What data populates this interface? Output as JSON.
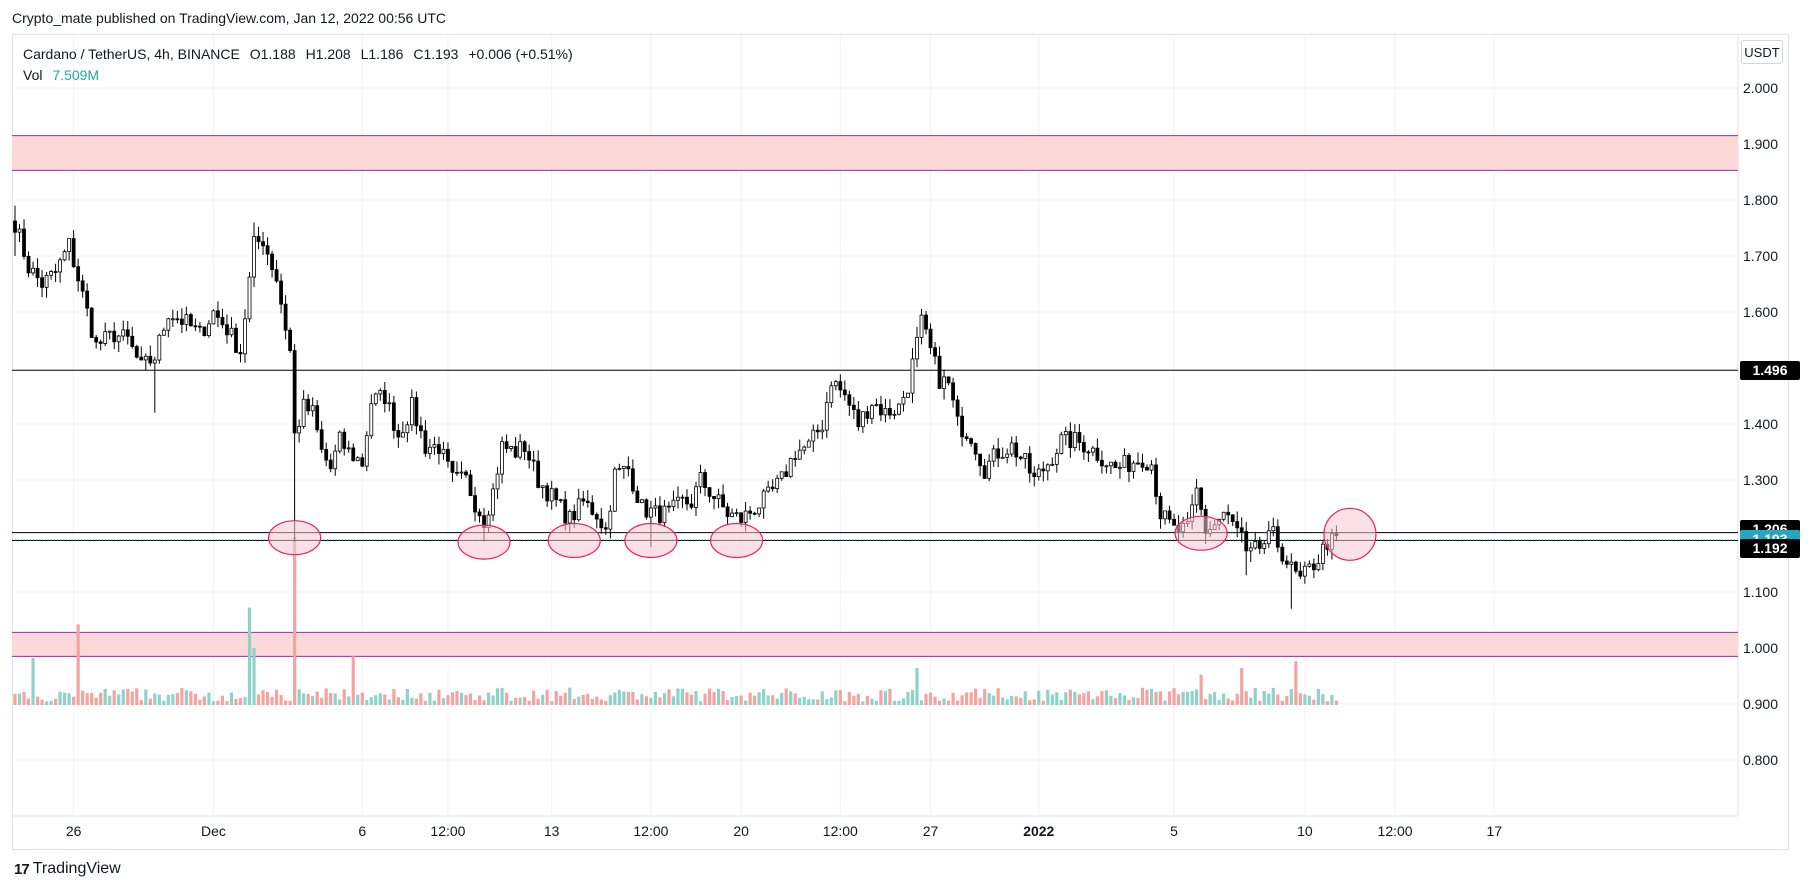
{
  "publisher_line": "Crypto_mate published on TradingView.com, Jan 12, 2022 00:56 UTC",
  "legend": {
    "symbol": "Cardano / TetherUS, 4h, BINANCE",
    "open": "O1.188",
    "high": "H1.208",
    "low": "L1.186",
    "close": "C1.193",
    "change": "+0.006 (+0.51%)",
    "vol_label": "Vol",
    "vol_value": "7.509M"
  },
  "currency_button": "USDT",
  "brand": {
    "logo": "17",
    "name": "TradingView"
  },
  "price_badges": [
    {
      "text": "1.496",
      "value": 1.496,
      "style": "dark"
    },
    {
      "text": "1.206",
      "value": 1.206,
      "style": "dark"
    },
    {
      "text": "1.193",
      "value": 1.193,
      "style": "teal"
    },
    {
      "text": "1.192",
      "value": 1.192,
      "style": "dark"
    }
  ],
  "colors": {
    "up_candle": "#ffffff",
    "down_candle": "#000000",
    "vol_up": "#8fd3c8",
    "vol_down": "#f4a3a0",
    "zone_fill": "#fcd8d8",
    "zone_border": "#9c27b0",
    "circle_fill": "#f8c8d4",
    "circle_stroke": "#e91e63",
    "last_price": "#26a7bf"
  },
  "chart_data": {
    "type": "candlestick",
    "title": "Cardano / TetherUS, 4h, BINANCE",
    "ylim": [
      0.75,
      2.07
    ],
    "y_ticks": [
      "2.000",
      "1.900",
      "1.800",
      "1.700",
      "1.600",
      "1.400",
      "1.300",
      "1.100",
      "1.000",
      "0.900",
      "0.800"
    ],
    "x_ticks": [
      {
        "label": "26",
        "index": 13
      },
      {
        "label": "Dec",
        "index": 44
      },
      {
        "label": "6",
        "index": 77
      },
      {
        "label": "12:00",
        "index": 96
      },
      {
        "label": "13",
        "index": 119
      },
      {
        "label": "12:00",
        "index": 141
      },
      {
        "label": "20",
        "index": 161
      },
      {
        "label": "12:00",
        "index": 183
      },
      {
        "label": "27",
        "index": 203
      },
      {
        "label": "2022",
        "index": 227,
        "bold": true
      },
      {
        "label": "5",
        "index": 257
      },
      {
        "label": "10",
        "index": 286
      },
      {
        "label": "12:00",
        "index": 306
      },
      {
        "label": "17",
        "index": 328
      }
    ],
    "x_count": 330,
    "horizontal_lines": [
      1.496,
      1.206,
      1.192
    ],
    "last_price_line": 1.193,
    "zones": [
      {
        "top": 1.915,
        "bottom": 1.853
      },
      {
        "top": 1.028,
        "bottom": 0.985
      }
    ],
    "circles": [
      {
        "index": 62,
        "price": 1.197
      },
      {
        "index": 104,
        "price": 1.189
      },
      {
        "index": 124,
        "price": 1.192
      },
      {
        "index": 141,
        "price": 1.192
      },
      {
        "index": 160,
        "price": 1.192
      },
      {
        "index": 263,
        "price": 1.205
      },
      {
        "index": 296,
        "price": 1.203,
        "big": true
      }
    ],
    "anchors": [
      [
        0,
        1.76
      ],
      [
        3,
        1.68
      ],
      [
        6,
        1.65
      ],
      [
        9,
        1.67
      ],
      [
        12,
        1.72
      ],
      [
        15,
        1.63
      ],
      [
        18,
        1.54
      ],
      [
        22,
        1.56
      ],
      [
        25,
        1.55
      ],
      [
        28,
        1.5
      ],
      [
        31,
        1.52
      ],
      [
        34,
        1.6
      ],
      [
        38,
        1.58
      ],
      [
        41,
        1.56
      ],
      [
        44,
        1.6
      ],
      [
        47,
        1.57
      ],
      [
        50,
        1.53
      ],
      [
        53,
        1.72
      ],
      [
        55,
        1.73
      ],
      [
        58,
        1.66
      ],
      [
        61,
        1.53
      ],
      [
        62,
        1.38
      ],
      [
        64,
        1.43
      ],
      [
        66,
        1.42
      ],
      [
        68,
        1.35
      ],
      [
        70,
        1.32
      ],
      [
        72,
        1.37
      ],
      [
        74,
        1.35
      ],
      [
        77,
        1.33
      ],
      [
        79,
        1.44
      ],
      [
        82,
        1.45
      ],
      [
        85,
        1.38
      ],
      [
        88,
        1.43
      ],
      [
        91,
        1.36
      ],
      [
        94,
        1.36
      ],
      [
        97,
        1.3
      ],
      [
        100,
        1.3
      ],
      [
        102,
        1.26
      ],
      [
        104,
        1.23
      ],
      [
        106,
        1.28
      ],
      [
        108,
        1.36
      ],
      [
        111,
        1.35
      ],
      [
        113,
        1.36
      ],
      [
        116,
        1.3
      ],
      [
        118,
        1.28
      ],
      [
        120,
        1.26
      ],
      [
        123,
        1.23
      ],
      [
        126,
        1.26
      ],
      [
        129,
        1.24
      ],
      [
        131,
        1.21
      ],
      [
        133,
        1.31
      ],
      [
        136,
        1.32
      ],
      [
        139,
        1.25
      ],
      [
        142,
        1.24
      ],
      [
        145,
        1.24
      ],
      [
        148,
        1.26
      ],
      [
        150,
        1.26
      ],
      [
        152,
        1.3
      ],
      [
        155,
        1.27
      ],
      [
        158,
        1.24
      ],
      [
        161,
        1.23
      ],
      [
        164,
        1.25
      ],
      [
        167,
        1.27
      ],
      [
        170,
        1.3
      ],
      [
        173,
        1.35
      ],
      [
        176,
        1.36
      ],
      [
        179,
        1.4
      ],
      [
        181,
        1.48
      ],
      [
        184,
        1.45
      ],
      [
        187,
        1.4
      ],
      [
        190,
        1.44
      ],
      [
        193,
        1.42
      ],
      [
        196,
        1.43
      ],
      [
        198,
        1.47
      ],
      [
        201,
        1.58
      ],
      [
        203,
        1.53
      ],
      [
        205,
        1.48
      ],
      [
        207,
        1.47
      ],
      [
        209,
        1.4
      ],
      [
        212,
        1.38
      ],
      [
        215,
        1.32
      ],
      [
        218,
        1.35
      ],
      [
        221,
        1.36
      ],
      [
        224,
        1.33
      ],
      [
        226,
        1.3
      ],
      [
        229,
        1.33
      ],
      [
        232,
        1.37
      ],
      [
        235,
        1.37
      ],
      [
        238,
        1.36
      ],
      [
        241,
        1.34
      ],
      [
        244,
        1.32
      ],
      [
        247,
        1.33
      ],
      [
        250,
        1.34
      ],
      [
        252,
        1.33
      ],
      [
        254,
        1.24
      ],
      [
        257,
        1.21
      ],
      [
        260,
        1.21
      ],
      [
        262,
        1.28
      ],
      [
        264,
        1.21
      ],
      [
        266,
        1.22
      ],
      [
        268,
        1.24
      ],
      [
        270,
        1.22
      ],
      [
        272,
        1.2
      ],
      [
        273,
        1.16
      ],
      [
        276,
        1.18
      ],
      [
        279,
        1.2
      ],
      [
        281,
        1.17
      ],
      [
        283,
        1.14
      ],
      [
        285,
        1.12
      ],
      [
        287,
        1.14
      ],
      [
        289,
        1.16
      ],
      [
        291,
        1.19
      ],
      [
        293,
        1.19
      ]
    ],
    "spikes": [
      {
        "index": 62,
        "high": 1.38,
        "low": 1.19
      },
      {
        "index": 53,
        "high": 1.76,
        "low": 1.7
      },
      {
        "index": 0,
        "high": 1.79,
        "low": 1.7
      },
      {
        "index": 31,
        "high": 1.52,
        "low": 1.42
      },
      {
        "index": 201,
        "high": 1.6,
        "low": 1.55
      },
      {
        "index": 283,
        "high": 1.15,
        "low": 1.07
      },
      {
        "index": 273,
        "high": 1.19,
        "low": 1.13
      },
      {
        "index": 104,
        "high": 1.25,
        "low": 1.19
      },
      {
        "index": 141,
        "high": 1.25,
        "low": 1.18
      }
    ],
    "volume_spikes": [
      {
        "index": 62,
        "value": 1.0
      },
      {
        "index": 52,
        "value": 0.58
      },
      {
        "index": 14,
        "value": 0.48
      },
      {
        "index": 53,
        "value": 0.34
      },
      {
        "index": 4,
        "value": 0.28
      },
      {
        "index": 75,
        "value": 0.29
      },
      {
        "index": 200,
        "value": 0.22
      },
      {
        "index": 272,
        "value": 0.22
      },
      {
        "index": 284,
        "value": 0.26
      },
      {
        "index": 263,
        "value": 0.18
      }
    ],
    "volume_base": 0.09
  }
}
